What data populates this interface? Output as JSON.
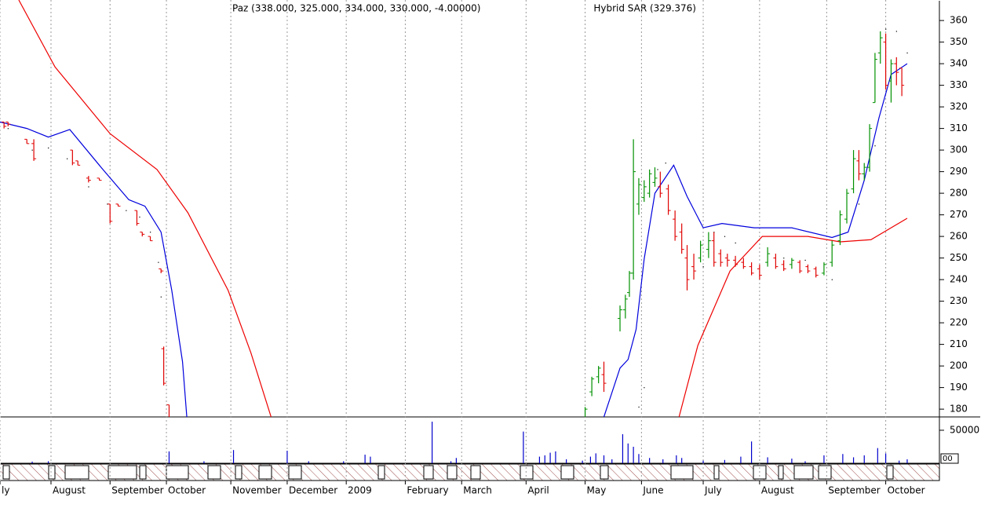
{
  "chart_data": {
    "type": "ohlc",
    "title": "Paz (338.000, 325.000, 334.000, 330.000, -4.00000)",
    "indicator_label": "Hybrid SAR (329.376)",
    "xlim": [
      0,
      350
    ],
    "xticks": [
      {
        "value": 0,
        "label": "ly"
      },
      {
        "value": 19,
        "label": "August"
      },
      {
        "value": 41,
        "label": "September"
      },
      {
        "value": 62,
        "label": "October"
      },
      {
        "value": 86,
        "label": "November"
      },
      {
        "value": 107,
        "label": "December"
      },
      {
        "value": 129,
        "label": "2009"
      },
      {
        "value": 151,
        "label": "February"
      },
      {
        "value": 172,
        "label": "March"
      },
      {
        "value": 196,
        "label": "April"
      },
      {
        "value": 218,
        "label": "May"
      },
      {
        "value": 239,
        "label": "June"
      },
      {
        "value": 262,
        "label": "July"
      },
      {
        "value": 283,
        "label": "August"
      },
      {
        "value": 308,
        "label": "September"
      },
      {
        "value": 330,
        "label": "October"
      }
    ],
    "ylim": [
      176.4,
      369.5
    ],
    "yticks": [
      180,
      190,
      200,
      210,
      220,
      230,
      240,
      250,
      260,
      270,
      280,
      290,
      300,
      310,
      320,
      330,
      340,
      350,
      360
    ],
    "up_color": "#009000",
    "down_color": "#e00000",
    "ohlc": {
      "x": [
        1.5,
        3,
        10,
        12.6,
        27,
        29,
        33,
        37,
        41,
        44,
        51,
        53,
        56,
        60,
        61,
        63,
        218,
        220.5,
        223,
        225,
        231,
        233,
        234.5,
        236,
        238,
        240,
        242,
        244,
        246,
        249,
        251.5,
        254,
        256,
        258.5,
        261,
        264,
        266,
        268.5,
        271,
        274,
        277,
        280,
        283,
        286,
        289,
        292,
        295,
        298,
        301,
        304,
        307,
        310,
        313,
        315.5,
        318,
        320,
        322,
        324,
        326,
        328,
        330,
        332,
        334,
        336
      ],
      "open": [
        313,
        313,
        305,
        303,
        300,
        295,
        287,
        287,
        275,
        275,
        272,
        262,
        260,
        245,
        208,
        182,
        176,
        188,
        195,
        196,
        222,
        226,
        234,
        243,
        275,
        278,
        280,
        285,
        283,
        282,
        268,
        262,
        250,
        246,
        250,
        254,
        258,
        252,
        250,
        249,
        248,
        246,
        245,
        248,
        250,
        247,
        247,
        248,
        246,
        245,
        243,
        248,
        258,
        268,
        282,
        295,
        289,
        292,
        322,
        345,
        350,
        332,
        340,
        338
      ],
      "high": [
        313,
        313,
        305,
        305,
        300,
        295,
        288,
        287,
        275,
        275,
        272,
        262,
        260,
        245,
        209,
        182,
        181,
        195,
        200,
        202,
        228,
        233,
        244,
        305,
        287,
        286,
        291,
        292,
        290,
        284,
        272,
        266,
        256,
        252,
        258,
        262,
        262,
        254,
        252,
        251,
        250,
        248,
        247,
        255,
        252,
        249,
        250,
        249,
        247,
        246,
        248,
        258,
        272,
        282,
        300,
        300,
        294,
        312,
        345,
        355,
        354,
        342,
        343,
        338
      ],
      "low": [
        310,
        311,
        303,
        295,
        293,
        293,
        285,
        286,
        266,
        274,
        265,
        260,
        258,
        243,
        191,
        176,
        176,
        186,
        192,
        188,
        216,
        222,
        232,
        240,
        270,
        276,
        278,
        283,
        278,
        270,
        258,
        252,
        235,
        240,
        248,
        250,
        246,
        246,
        246,
        246,
        245,
        242,
        240,
        246,
        245,
        244,
        245,
        243,
        243,
        241,
        242,
        246,
        256,
        266,
        280,
        286,
        286,
        290,
        322,
        340,
        328,
        322,
        330,
        325
      ],
      "close": [
        311,
        312,
        303,
        296,
        294,
        293,
        286,
        286,
        267,
        274,
        266,
        261,
        258,
        244,
        192,
        176,
        180,
        194,
        199,
        192,
        226,
        231,
        243,
        290,
        284,
        283,
        289,
        287,
        280,
        272,
        260,
        254,
        240,
        244,
        256,
        258,
        248,
        248,
        249,
        247,
        246,
        243,
        242,
        252,
        246,
        245,
        249,
        244,
        244,
        242,
        247,
        256,
        270,
        280,
        296,
        289,
        292,
        310,
        342,
        352,
        330,
        340,
        336,
        330
      ]
    },
    "lines": [
      {
        "color": "#0000dd",
        "x": [
          0,
          10,
          18,
          26,
          38,
          48,
          54,
          60,
          64,
          68,
          69.6,
          null,
          225,
          231,
          234,
          237,
          240,
          244,
          251,
          256,
          262,
          269,
          281,
          295,
          310,
          316,
          322,
          327.5,
          332,
          338
        ],
        "values": [
          313,
          310,
          306,
          309.5,
          291.5,
          277,
          274,
          262,
          235,
          202,
          176.4,
          null,
          176.4,
          199,
          203,
          217,
          249.5,
          280,
          293,
          278.5,
          264,
          266,
          264,
          264,
          259.5,
          262,
          286,
          315,
          335,
          340
        ]
      },
      {
        "color": "#ee0000",
        "x": [
          7,
          20.5,
          41,
          58.5,
          70,
          85,
          93.5,
          101,
          null,
          253,
          260,
          272,
          284,
          301,
          313,
          324.5,
          338
        ],
        "values": [
          369.5,
          338.5,
          307.6,
          291,
          271,
          235,
          206,
          176.4,
          null,
          176.4,
          209.5,
          244,
          260,
          260,
          257.5,
          258.5,
          268.4
        ]
      }
    ],
    "sar": {
      "color": "#000000",
      "x": [
        3,
        12,
        18,
        25,
        33,
        40,
        47,
        52,
        56,
        59,
        60,
        238,
        240,
        245,
        248,
        262,
        266,
        270,
        274,
        292,
        300,
        310,
        320,
        326,
        330,
        334,
        338
      ],
      "values": [
        310,
        300,
        301,
        296,
        283,
        275,
        272,
        269,
        262,
        248,
        232,
        181,
        190,
        291,
        294,
        246,
        262,
        260,
        257,
        250,
        249,
        240,
        275,
        302,
        356,
        355,
        345
      ]
    },
    "volume": {
      "color": "#0000cc",
      "ylim": [
        0,
        69000
      ],
      "yticks": [
        50000
      ],
      "box_label": "00",
      "x": [
        12,
        18,
        63,
        76,
        87,
        107,
        115,
        128,
        136,
        138,
        161,
        168,
        170,
        195,
        201,
        203,
        205,
        207,
        211,
        217,
        220,
        222,
        225,
        228,
        232,
        234,
        236,
        238,
        242,
        247,
        252,
        254,
        262,
        270,
        276,
        280,
        286,
        295,
        300,
        307,
        314,
        318,
        322,
        327,
        330,
        335,
        338
      ],
      "values": [
        2500,
        3000,
        18000,
        3000,
        20000,
        19000,
        3000,
        3000,
        13000,
        10000,
        63000,
        3000,
        8000,
        48000,
        10000,
        12000,
        16000,
        18000,
        6000,
        4000,
        10000,
        15000,
        12000,
        6000,
        44000,
        30000,
        25000,
        14000,
        8000,
        6000,
        12000,
        8000,
        4000,
        5000,
        10000,
        33000,
        9000,
        7000,
        3000,
        12000,
        14000,
        9000,
        12000,
        23000,
        15000,
        4000,
        6000
      ]
    }
  }
}
